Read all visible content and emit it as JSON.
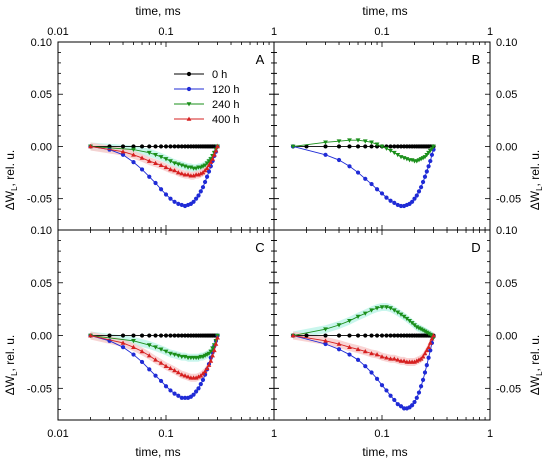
{
  "figure": {
    "top_xlabel": "time, ms",
    "bottom_xlabel": "time, ms",
    "ylabel_main": "ΔW",
    "ylabel_sub": "L",
    "ylabel_rest": ", rel. u.",
    "top_ticks": [
      "0.01",
      "0.1",
      "1",
      "0.1",
      "1"
    ],
    "bottom_ticks": [
      "0.01",
      "0.1",
      "1",
      "0.1",
      "1"
    ],
    "ytick_labels": [
      "0.10",
      "0.05",
      "0.00",
      "-0.05"
    ]
  },
  "colors": {
    "0 h": "#000000",
    "120 h": "#1f2bd6",
    "240 h": "#1a8f1a",
    "400 h": "#d62020",
    "band_240": "#bff5ea",
    "band_400": "#f8cccc"
  },
  "chart_data": [
    {
      "type": "line",
      "panel": "A",
      "xscale": "log",
      "xlim": [
        0.01,
        1
      ],
      "ylim": [
        -0.08,
        0.1
      ],
      "legend": {
        "placement": "top-center",
        "entries": [
          "0 h",
          "120 h",
          "240 h",
          "400 h"
        ]
      },
      "series": [
        {
          "name": "0 h",
          "marker": "circle",
          "x": [
            0.02,
            0.03,
            0.04,
            0.05,
            0.06,
            0.07,
            0.08,
            0.09,
            0.1,
            0.11,
            0.12,
            0.13,
            0.14,
            0.15,
            0.16,
            0.17,
            0.18,
            0.19,
            0.2,
            0.21,
            0.22,
            0.23,
            0.24,
            0.25,
            0.26,
            0.27,
            0.28,
            0.29,
            0.3
          ],
          "y": [
            0.0,
            0.0,
            0.0,
            0.0,
            0.0,
            0.0,
            0.0,
            0.0,
            0.0,
            0.0,
            0.0,
            0.0,
            0.0,
            0.0,
            0.0,
            0.0,
            0.0,
            0.0,
            0.0,
            0.0,
            0.0,
            0.0,
            0.0,
            0.0,
            0.0,
            0.0,
            0.0,
            0.0,
            0.0
          ]
        },
        {
          "name": "120 h",
          "marker": "circle",
          "x": [
            0.02,
            0.03,
            0.04,
            0.05,
            0.06,
            0.07,
            0.08,
            0.09,
            0.1,
            0.11,
            0.12,
            0.13,
            0.14,
            0.15,
            0.16,
            0.17,
            0.18,
            0.19,
            0.2,
            0.21,
            0.22,
            0.23,
            0.24,
            0.25,
            0.26,
            0.27,
            0.28,
            0.29,
            0.3
          ],
          "y": [
            0.0,
            -0.003,
            -0.008,
            -0.015,
            -0.022,
            -0.029,
            -0.035,
            -0.041,
            -0.046,
            -0.05,
            -0.053,
            -0.055,
            -0.056,
            -0.057,
            -0.056,
            -0.055,
            -0.053,
            -0.05,
            -0.047,
            -0.043,
            -0.039,
            -0.034,
            -0.029,
            -0.024,
            -0.019,
            -0.014,
            -0.009,
            -0.005,
            0.0
          ]
        },
        {
          "name": "240 h",
          "marker": "triangle-down",
          "band": true,
          "x": [
            0.02,
            0.05,
            0.07,
            0.08,
            0.09,
            0.1,
            0.11,
            0.12,
            0.13,
            0.14,
            0.15,
            0.16,
            0.17,
            0.18,
            0.19,
            0.2,
            0.21,
            0.22,
            0.23,
            0.24,
            0.25,
            0.26,
            0.27,
            0.28,
            0.29,
            0.3
          ],
          "y": [
            0.0,
            -0.003,
            -0.006,
            -0.008,
            -0.01,
            -0.012,
            -0.014,
            -0.016,
            -0.017,
            -0.018,
            -0.019,
            -0.02,
            -0.02,
            -0.021,
            -0.021,
            -0.02,
            -0.02,
            -0.019,
            -0.018,
            -0.016,
            -0.014,
            -0.012,
            -0.009,
            -0.006,
            -0.003,
            0.0
          ]
        },
        {
          "name": "400 h",
          "marker": "triangle-up",
          "band": true,
          "x": [
            0.02,
            0.04,
            0.05,
            0.06,
            0.07,
            0.08,
            0.09,
            0.1,
            0.11,
            0.12,
            0.13,
            0.14,
            0.15,
            0.16,
            0.17,
            0.18,
            0.19,
            0.2,
            0.21,
            0.22,
            0.23,
            0.24,
            0.25,
            0.26,
            0.27,
            0.28,
            0.29,
            0.3
          ],
          "y": [
            0.0,
            -0.005,
            -0.008,
            -0.011,
            -0.014,
            -0.016,
            -0.018,
            -0.02,
            -0.022,
            -0.023,
            -0.025,
            -0.026,
            -0.027,
            -0.027,
            -0.028,
            -0.028,
            -0.027,
            -0.027,
            -0.026,
            -0.025,
            -0.023,
            -0.021,
            -0.018,
            -0.015,
            -0.012,
            -0.008,
            -0.004,
            0.0
          ]
        }
      ]
    },
    {
      "type": "line",
      "panel": "B",
      "xscale": "log",
      "xlim": [
        0.01,
        1
      ],
      "ylim": [
        -0.08,
        0.1
      ],
      "series": [
        {
          "name": "0 h",
          "marker": "circle",
          "x": [
            0.015,
            0.02,
            0.03,
            0.04,
            0.05,
            0.06,
            0.07,
            0.08,
            0.09,
            0.1,
            0.11,
            0.12,
            0.13,
            0.14,
            0.15,
            0.16,
            0.17,
            0.18,
            0.19,
            0.2,
            0.21,
            0.22,
            0.23,
            0.24,
            0.25,
            0.26,
            0.27,
            0.28,
            0.29,
            0.3
          ],
          "y": [
            0.0,
            0.0,
            0.0,
            0.0,
            0.0,
            0.0,
            0.0,
            0.0,
            0.0,
            0.0,
            0.0,
            0.0,
            0.0,
            0.0,
            0.0,
            0.0,
            0.0,
            0.0,
            0.0,
            0.0,
            0.0,
            0.0,
            0.0,
            0.0,
            0.0,
            0.0,
            0.0,
            0.0,
            0.0,
            0.0
          ]
        },
        {
          "name": "120 h",
          "marker": "circle",
          "x": [
            0.015,
            0.03,
            0.04,
            0.05,
            0.06,
            0.07,
            0.08,
            0.09,
            0.1,
            0.11,
            0.12,
            0.13,
            0.14,
            0.15,
            0.16,
            0.17,
            0.18,
            0.19,
            0.2,
            0.21,
            0.22,
            0.23,
            0.24,
            0.25,
            0.26,
            0.27,
            0.28,
            0.29,
            0.3
          ],
          "y": [
            0.0,
            -0.008,
            -0.013,
            -0.019,
            -0.025,
            -0.031,
            -0.036,
            -0.041,
            -0.045,
            -0.049,
            -0.052,
            -0.054,
            -0.056,
            -0.057,
            -0.057,
            -0.056,
            -0.055,
            -0.053,
            -0.05,
            -0.047,
            -0.043,
            -0.039,
            -0.034,
            -0.029,
            -0.024,
            -0.019,
            -0.014,
            -0.008,
            -0.003
          ]
        },
        {
          "name": "240 h",
          "marker": "triangle-down",
          "x": [
            0.015,
            0.03,
            0.04,
            0.05,
            0.06,
            0.07,
            0.08,
            0.09,
            0.1,
            0.11,
            0.12,
            0.13,
            0.14,
            0.15,
            0.16,
            0.17,
            0.18,
            0.19,
            0.2,
            0.21,
            0.22,
            0.23,
            0.24,
            0.25,
            0.26,
            0.27,
            0.28,
            0.29,
            0.3
          ],
          "y": [
            0.0,
            0.004,
            0.005,
            0.006,
            0.006,
            0.005,
            0.004,
            0.002,
            0.0,
            -0.002,
            -0.004,
            -0.006,
            -0.008,
            -0.01,
            -0.011,
            -0.012,
            -0.013,
            -0.013,
            -0.014,
            -0.014,
            -0.013,
            -0.012,
            -0.011,
            -0.01,
            -0.008,
            -0.006,
            -0.004,
            -0.002,
            0.0
          ]
        }
      ]
    },
    {
      "type": "line",
      "panel": "C",
      "xscale": "log",
      "xlim": [
        0.01,
        1
      ],
      "ylim": [
        -0.08,
        0.1
      ],
      "series": [
        {
          "name": "0 h",
          "marker": "circle",
          "x": [
            0.02,
            0.03,
            0.04,
            0.05,
            0.06,
            0.07,
            0.08,
            0.09,
            0.1,
            0.11,
            0.12,
            0.13,
            0.14,
            0.15,
            0.16,
            0.17,
            0.18,
            0.19,
            0.2,
            0.21,
            0.22,
            0.23,
            0.24,
            0.25,
            0.26,
            0.27,
            0.28,
            0.29,
            0.3
          ],
          "y": [
            0.0,
            0.0,
            0.0,
            0.0,
            0.0,
            0.0,
            0.0,
            0.0,
            0.0,
            0.0,
            0.0,
            0.0,
            0.0,
            0.0,
            0.0,
            0.0,
            0.0,
            0.0,
            0.0,
            0.0,
            0.0,
            0.0,
            0.0,
            0.0,
            0.0,
            0.0,
            0.0,
            0.0,
            0.0
          ]
        },
        {
          "name": "120 h",
          "marker": "circle",
          "x": [
            0.02,
            0.03,
            0.04,
            0.05,
            0.06,
            0.07,
            0.08,
            0.09,
            0.1,
            0.11,
            0.12,
            0.13,
            0.14,
            0.15,
            0.16,
            0.17,
            0.18,
            0.19,
            0.2,
            0.21,
            0.22,
            0.23,
            0.24,
            0.25,
            0.26,
            0.27,
            0.28,
            0.29,
            0.3
          ],
          "y": [
            0.0,
            -0.005,
            -0.011,
            -0.018,
            -0.025,
            -0.032,
            -0.038,
            -0.043,
            -0.048,
            -0.052,
            -0.055,
            -0.057,
            -0.059,
            -0.059,
            -0.059,
            -0.058,
            -0.056,
            -0.053,
            -0.05,
            -0.046,
            -0.042,
            -0.037,
            -0.032,
            -0.027,
            -0.021,
            -0.016,
            -0.01,
            -0.005,
            0.0
          ]
        },
        {
          "name": "240 h",
          "marker": "triangle-down",
          "band": true,
          "x": [
            0.02,
            0.05,
            0.07,
            0.08,
            0.09,
            0.1,
            0.11,
            0.12,
            0.13,
            0.14,
            0.15,
            0.16,
            0.17,
            0.18,
            0.19,
            0.2,
            0.21,
            0.22,
            0.23,
            0.24,
            0.25,
            0.26,
            0.27,
            0.28,
            0.29,
            0.3
          ],
          "y": [
            0.0,
            -0.005,
            -0.009,
            -0.011,
            -0.013,
            -0.015,
            -0.017,
            -0.018,
            -0.019,
            -0.02,
            -0.02,
            -0.021,
            -0.021,
            -0.021,
            -0.021,
            -0.021,
            -0.02,
            -0.02,
            -0.019,
            -0.018,
            -0.017,
            -0.015,
            -0.012,
            -0.009,
            -0.005,
            0.0
          ]
        },
        {
          "name": "400 h",
          "marker": "triangle-up",
          "band": true,
          "x": [
            0.02,
            0.04,
            0.05,
            0.06,
            0.07,
            0.08,
            0.09,
            0.1,
            0.11,
            0.12,
            0.13,
            0.14,
            0.15,
            0.16,
            0.17,
            0.18,
            0.19,
            0.2,
            0.21,
            0.22,
            0.23,
            0.24,
            0.25,
            0.26,
            0.27,
            0.28,
            0.29,
            0.3
          ],
          "y": [
            0.0,
            -0.007,
            -0.011,
            -0.015,
            -0.019,
            -0.023,
            -0.026,
            -0.029,
            -0.031,
            -0.033,
            -0.035,
            -0.037,
            -0.038,
            -0.039,
            -0.04,
            -0.04,
            -0.04,
            -0.039,
            -0.038,
            -0.036,
            -0.034,
            -0.031,
            -0.028,
            -0.024,
            -0.019,
            -0.014,
            -0.008,
            -0.002
          ]
        }
      ]
    },
    {
      "type": "line",
      "panel": "D",
      "xscale": "log",
      "xlim": [
        0.01,
        1
      ],
      "ylim": [
        -0.08,
        0.1
      ],
      "series": [
        {
          "name": "0 h",
          "marker": "circle",
          "x": [
            0.015,
            0.02,
            0.03,
            0.04,
            0.05,
            0.06,
            0.07,
            0.08,
            0.09,
            0.1,
            0.11,
            0.12,
            0.13,
            0.14,
            0.15,
            0.16,
            0.17,
            0.18,
            0.19,
            0.2,
            0.21,
            0.22,
            0.23,
            0.24,
            0.25,
            0.26,
            0.27,
            0.28,
            0.29,
            0.3
          ],
          "y": [
            0.0,
            0.0,
            0.0,
            0.0,
            0.0,
            0.0,
            0.0,
            0.0,
            0.0,
            0.0,
            0.0,
            0.0,
            0.0,
            0.0,
            0.0,
            0.0,
            0.0,
            0.0,
            0.0,
            0.0,
            0.0,
            0.0,
            0.0,
            0.0,
            0.0,
            0.0,
            0.0,
            0.0,
            0.0,
            0.0
          ]
        },
        {
          "name": "120 h",
          "marker": "circle",
          "x": [
            0.015,
            0.03,
            0.04,
            0.05,
            0.06,
            0.07,
            0.08,
            0.09,
            0.1,
            0.11,
            0.12,
            0.13,
            0.14,
            0.15,
            0.16,
            0.17,
            0.18,
            0.19,
            0.2,
            0.21,
            0.22,
            0.23,
            0.24,
            0.25,
            0.26,
            0.27,
            0.28,
            0.29,
            0.3
          ],
          "y": [
            0.0,
            -0.008,
            -0.013,
            -0.018,
            -0.023,
            -0.029,
            -0.035,
            -0.041,
            -0.047,
            -0.052,
            -0.057,
            -0.061,
            -0.065,
            -0.067,
            -0.069,
            -0.069,
            -0.068,
            -0.066,
            -0.063,
            -0.059,
            -0.054,
            -0.048,
            -0.042,
            -0.035,
            -0.028,
            -0.021,
            -0.014,
            -0.007,
            -0.001
          ]
        },
        {
          "name": "240 h",
          "marker": "triangle-down",
          "band": true,
          "x": [
            0.015,
            0.03,
            0.04,
            0.05,
            0.06,
            0.07,
            0.08,
            0.09,
            0.1,
            0.11,
            0.12,
            0.13,
            0.14,
            0.15,
            0.16,
            0.17,
            0.18,
            0.19,
            0.2,
            0.21,
            0.22,
            0.23,
            0.24,
            0.25,
            0.26,
            0.27,
            0.28,
            0.29,
            0.3
          ],
          "y": [
            0.0,
            0.006,
            0.01,
            0.014,
            0.018,
            0.021,
            0.024,
            0.026,
            0.027,
            0.027,
            0.026,
            0.024,
            0.022,
            0.02,
            0.018,
            0.016,
            0.014,
            0.012,
            0.01,
            0.008,
            0.007,
            0.006,
            0.005,
            0.004,
            0.003,
            0.002,
            0.001,
            0.0,
            -0.002
          ]
        },
        {
          "name": "400 h",
          "marker": "triangle-up",
          "band": true,
          "x": [
            0.015,
            0.03,
            0.04,
            0.05,
            0.06,
            0.07,
            0.08,
            0.09,
            0.1,
            0.11,
            0.12,
            0.13,
            0.14,
            0.15,
            0.16,
            0.17,
            0.18,
            0.19,
            0.2,
            0.21,
            0.22,
            0.23,
            0.24,
            0.25,
            0.26,
            0.27,
            0.28,
            0.29,
            0.3
          ],
          "y": [
            0.0,
            -0.005,
            -0.008,
            -0.011,
            -0.013,
            -0.015,
            -0.017,
            -0.018,
            -0.02,
            -0.021,
            -0.022,
            -0.022,
            -0.023,
            -0.024,
            -0.024,
            -0.025,
            -0.025,
            -0.025,
            -0.025,
            -0.024,
            -0.023,
            -0.022,
            -0.02,
            -0.017,
            -0.014,
            -0.011,
            -0.007,
            -0.003,
            0.0
          ]
        }
      ]
    }
  ]
}
